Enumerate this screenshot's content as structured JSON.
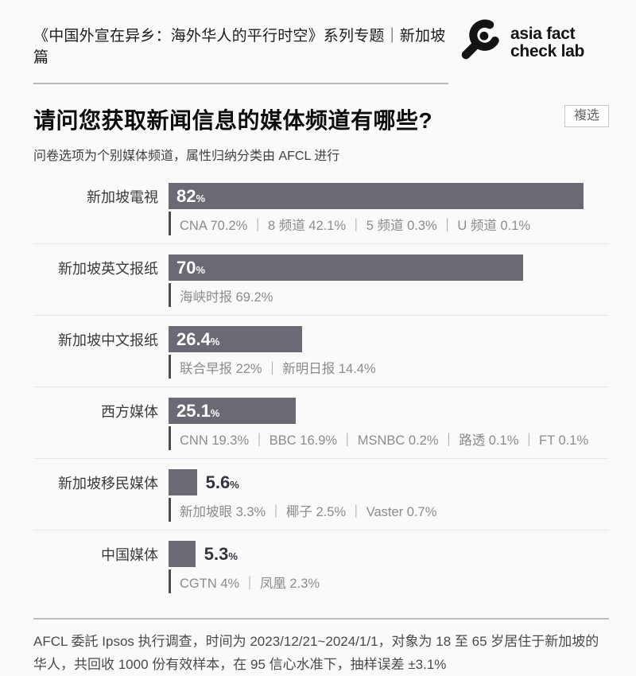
{
  "header": {
    "series_title": "《中国外宣在异乡：海外华人的平行时空》系列专题｜新加坡篇",
    "logo": {
      "line1": "asia fact",
      "line2": "check lab"
    }
  },
  "question": {
    "title": "请问您获取新闻信息的媒体频道有哪些?",
    "badge": "複选",
    "subtitle": "问卷选项为个别媒体频道，属性归纳分类由 AFCL 进行"
  },
  "colors": {
    "bar": "#6a6a74",
    "background": "#fafafa",
    "value_inside": "#ffffff",
    "value_outside": "#35353f",
    "breakdown_text": "#8b8b90",
    "logo_black": "#141414"
  },
  "rows": [
    {
      "label": "新加坡電視",
      "value": 82,
      "value_label": "82",
      "unit": "%",
      "breakdown": "CNA 70.2% ｜ 8 频道 42.1% ｜ 5 频道 0.3% ｜ U 频道 0.1%"
    },
    {
      "label": "新加坡英文报纸",
      "value": 70,
      "value_label": "70",
      "unit": "%",
      "breakdown": "海峡时报 69.2%"
    },
    {
      "label": "新加坡中文报纸",
      "value": 26.4,
      "value_label": "26.4",
      "unit": "%",
      "breakdown": "联合早报 22% ｜ 新明日报 14.4%"
    },
    {
      "label": "西方媒体",
      "value": 25.1,
      "value_label": "25.1",
      "unit": "%",
      "breakdown": "CNN 19.3% ｜ BBC 16.9% ｜ MSNBC 0.2% ｜ 路透 0.1% ｜ FT 0.1%"
    },
    {
      "label": "新加坡移民媒体",
      "value": 5.6,
      "value_label": "5.6",
      "unit": "%",
      "breakdown": "新加坡眼 3.3% ｜ 椰子 2.5% ｜ Vaster 0.7%"
    },
    {
      "label": "中国媒体",
      "value": 5.3,
      "value_label": "5.3",
      "unit": "%",
      "breakdown": "CGTN 4% ｜ 凤凰 2.3%"
    }
  ],
  "footer": {
    "note": "AFCL 委託 Ipsos 执行调查，时间为 2023/12/21~2024/1/1，对象为 18 至 65 岁居住于新加坡的华人，共回收 1000 份有效样本，在 95 信心水准下，抽样误差 ±3.1%"
  },
  "chart_data": {
    "type": "bar",
    "orientation": "horizontal",
    "title": "请问您获取新闻信息的媒体频道有哪些?",
    "subtitle": "问卷选项为个别媒体频道，属性归纳分类由 AFCL 进行",
    "annotation": "複选",
    "categories": [
      "新加坡電視",
      "新加坡英文报纸",
      "新加坡中文报纸",
      "西方媒体",
      "新加坡移民媒体",
      "中国媒体"
    ],
    "values": [
      82,
      70,
      26.4,
      25.1,
      5.6,
      5.3
    ],
    "unit": "%",
    "xlim": [
      0,
      87
    ],
    "grid": false,
    "legend": false,
    "bar_color": "#6a6a74",
    "breakdowns": [
      [
        {
          "name": "CNA",
          "value": 70.2
        },
        {
          "name": "8 频道",
          "value": 42.1
        },
        {
          "name": "5 频道",
          "value": 0.3
        },
        {
          "name": "U 频道",
          "value": 0.1
        }
      ],
      [
        {
          "name": "海峡时报",
          "value": 69.2
        }
      ],
      [
        {
          "name": "联合早报",
          "value": 22
        },
        {
          "name": "新明日报",
          "value": 14.4
        }
      ],
      [
        {
          "name": "CNN",
          "value": 19.3
        },
        {
          "name": "BBC",
          "value": 16.9
        },
        {
          "name": "MSNBC",
          "value": 0.2
        },
        {
          "name": "路透",
          "value": 0.1
        },
        {
          "name": "FT",
          "value": 0.1
        }
      ],
      [
        {
          "name": "新加坡眼",
          "value": 3.3
        },
        {
          "name": "椰子",
          "value": 2.5
        },
        {
          "name": "Vaster",
          "value": 0.7
        }
      ],
      [
        {
          "name": "CGTN",
          "value": 4
        },
        {
          "name": "凤凰",
          "value": 2.3
        }
      ]
    ],
    "source_note": "AFCL 委託 Ipsos 执行调查，时间为 2023/12/21~2024/1/1，对象为 18 至 65 岁居住于新加坡的华人，共回收 1000 份有效样本，在 95 信心水准下，抽样误差 ±3.1%"
  }
}
